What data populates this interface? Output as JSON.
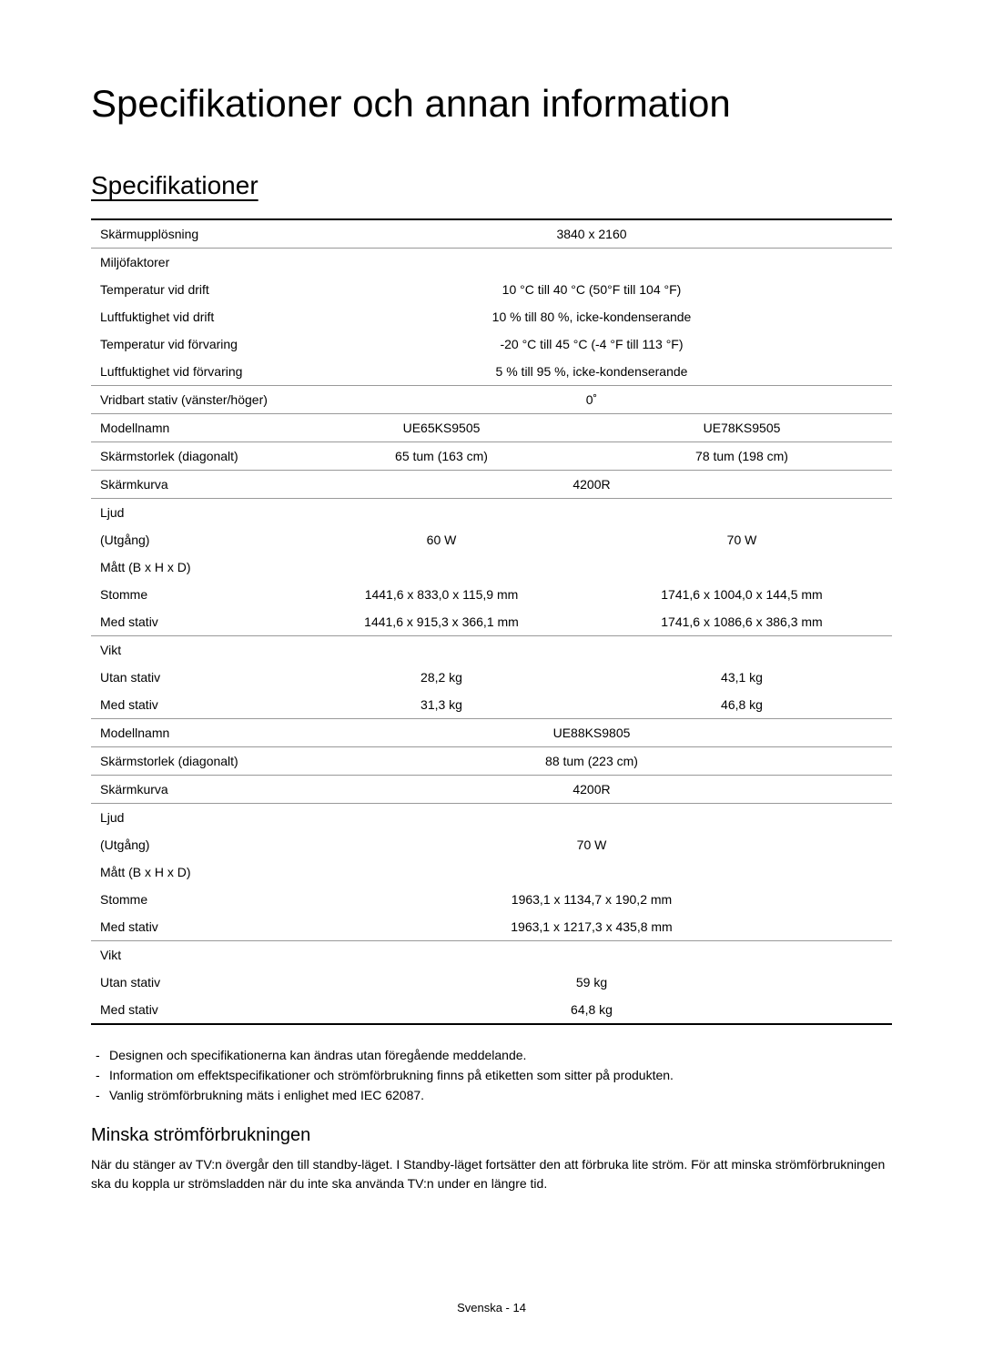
{
  "title": "Specifikationer och annan information",
  "sectionTitle": "Specifikationer",
  "rows": {
    "screenRes": {
      "label": "Skärmupplösning",
      "value": "3840 x 2160"
    },
    "envFactors": {
      "label": "Miljöfaktorer"
    },
    "tempOp": {
      "label": "Temperatur vid drift",
      "value": "10 °C till 40 °C (50°F till 104 °F)"
    },
    "humOp": {
      "label": "Luftfuktighet vid drift",
      "value": "10 % till 80 %, icke-kondenserande"
    },
    "tempStore": {
      "label": "Temperatur vid förvaring",
      "value": "-20 °C till 45 °C (-4 °F till 113 °F)"
    },
    "humStore": {
      "label": "Luftfuktighet vid förvaring",
      "value": "5 % till 95 %, icke-kondenserande"
    },
    "swivel": {
      "label": "Vridbart stativ (vänster/höger)",
      "value": "0˚"
    },
    "modelName1": {
      "label": "Modellnamn",
      "col1": "UE65KS9505",
      "col2": "UE78KS9505"
    },
    "screenSize1": {
      "label": "Skärmstorlek (diagonalt)",
      "col1": "65 tum (163 cm)",
      "col2": "78 tum (198 cm)"
    },
    "curve1": {
      "label": "Skärmkurva",
      "value": "4200R"
    },
    "sound1": {
      "label": "Ljud"
    },
    "output1": {
      "label": "(Utgång)",
      "col1": "60 W",
      "col2": "70 W"
    },
    "dim1": {
      "label": "Mått (B x H x D)"
    },
    "body1": {
      "label": "Stomme",
      "col1": "1441,6 x 833,0 x 115,9 mm",
      "col2": "1741,6 x 1004,0 x 144,5 mm"
    },
    "stand1": {
      "label": "Med stativ",
      "col1": "1441,6 x 915,3 x 366,1 mm",
      "col2": "1741,6 x 1086,6 x 386,3 mm"
    },
    "weight1": {
      "label": "Vikt"
    },
    "nostand1": {
      "label": "Utan stativ",
      "col1": "28,2 kg",
      "col2": "43,1 kg"
    },
    "withstand1": {
      "label": "Med stativ",
      "col1": "31,3 kg",
      "col2": "46,8 kg"
    },
    "modelName2": {
      "label": "Modellnamn",
      "value": "UE88KS9805"
    },
    "screenSize2": {
      "label": "Skärmstorlek (diagonalt)",
      "value": "88 tum (223 cm)"
    },
    "curve2": {
      "label": "Skärmkurva",
      "value": "4200R"
    },
    "sound2": {
      "label": "Ljud"
    },
    "output2": {
      "label": "(Utgång)",
      "value": "70 W"
    },
    "dim2": {
      "label": "Mått (B x H x D)"
    },
    "body2": {
      "label": "Stomme",
      "value": "1963,1 x 1134,7 x 190,2 mm"
    },
    "stand2": {
      "label": "Med stativ",
      "value": "1963,1 x 1217,3 x 435,8 mm"
    },
    "weight2": {
      "label": "Vikt"
    },
    "nostand2": {
      "label": "Utan stativ",
      "value": "59 kg"
    },
    "withstand2": {
      "label": "Med stativ",
      "value": "64,8 kg"
    }
  },
  "notes": {
    "n1": "Designen och specifikationerna kan ändras utan föregående meddelande.",
    "n2": "Information om effektspecifikationer och strömförbrukning finns på etiketten som sitter på produkten.",
    "n3": "Vanlig strömförbrukning mäts i enlighet med IEC 62087."
  },
  "subsectionTitle": "Minska strömförbrukningen",
  "bodyText": "När du stänger av TV:n övergår den till standby-läget. I Standby-läget fortsätter den att förbruka lite ström. För att minska strömförbrukningen ska du koppla ur strömsladden när du inte ska använda TV:n under en längre tid.",
  "footer": "Svenska - 14"
}
